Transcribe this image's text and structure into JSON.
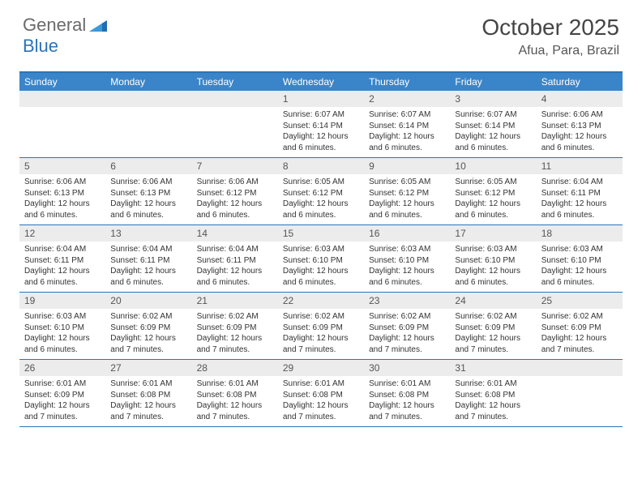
{
  "logo": {
    "general": "General",
    "blue": "Blue"
  },
  "title": {
    "month": "October 2025",
    "location": "Afua, Para, Brazil"
  },
  "colors": {
    "header_bar": "#3a85c9",
    "border": "#2a74b8",
    "daynum_bg": "#ececec",
    "text": "#333333",
    "logo_gray": "#6a6a6a",
    "logo_blue": "#2a74b8"
  },
  "weekdays": [
    "Sunday",
    "Monday",
    "Tuesday",
    "Wednesday",
    "Thursday",
    "Friday",
    "Saturday"
  ],
  "weeks": [
    [
      {
        "day": "",
        "sunrise": "",
        "sunset": "",
        "daylight": ""
      },
      {
        "day": "",
        "sunrise": "",
        "sunset": "",
        "daylight": ""
      },
      {
        "day": "",
        "sunrise": "",
        "sunset": "",
        "daylight": ""
      },
      {
        "day": "1",
        "sunrise": "Sunrise: 6:07 AM",
        "sunset": "Sunset: 6:14 PM",
        "daylight": "Daylight: 12 hours and 6 minutes."
      },
      {
        "day": "2",
        "sunrise": "Sunrise: 6:07 AM",
        "sunset": "Sunset: 6:14 PM",
        "daylight": "Daylight: 12 hours and 6 minutes."
      },
      {
        "day": "3",
        "sunrise": "Sunrise: 6:07 AM",
        "sunset": "Sunset: 6:14 PM",
        "daylight": "Daylight: 12 hours and 6 minutes."
      },
      {
        "day": "4",
        "sunrise": "Sunrise: 6:06 AM",
        "sunset": "Sunset: 6:13 PM",
        "daylight": "Daylight: 12 hours and 6 minutes."
      }
    ],
    [
      {
        "day": "5",
        "sunrise": "Sunrise: 6:06 AM",
        "sunset": "Sunset: 6:13 PM",
        "daylight": "Daylight: 12 hours and 6 minutes."
      },
      {
        "day": "6",
        "sunrise": "Sunrise: 6:06 AM",
        "sunset": "Sunset: 6:13 PM",
        "daylight": "Daylight: 12 hours and 6 minutes."
      },
      {
        "day": "7",
        "sunrise": "Sunrise: 6:06 AM",
        "sunset": "Sunset: 6:12 PM",
        "daylight": "Daylight: 12 hours and 6 minutes."
      },
      {
        "day": "8",
        "sunrise": "Sunrise: 6:05 AM",
        "sunset": "Sunset: 6:12 PM",
        "daylight": "Daylight: 12 hours and 6 minutes."
      },
      {
        "day": "9",
        "sunrise": "Sunrise: 6:05 AM",
        "sunset": "Sunset: 6:12 PM",
        "daylight": "Daylight: 12 hours and 6 minutes."
      },
      {
        "day": "10",
        "sunrise": "Sunrise: 6:05 AM",
        "sunset": "Sunset: 6:12 PM",
        "daylight": "Daylight: 12 hours and 6 minutes."
      },
      {
        "day": "11",
        "sunrise": "Sunrise: 6:04 AM",
        "sunset": "Sunset: 6:11 PM",
        "daylight": "Daylight: 12 hours and 6 minutes."
      }
    ],
    [
      {
        "day": "12",
        "sunrise": "Sunrise: 6:04 AM",
        "sunset": "Sunset: 6:11 PM",
        "daylight": "Daylight: 12 hours and 6 minutes."
      },
      {
        "day": "13",
        "sunrise": "Sunrise: 6:04 AM",
        "sunset": "Sunset: 6:11 PM",
        "daylight": "Daylight: 12 hours and 6 minutes."
      },
      {
        "day": "14",
        "sunrise": "Sunrise: 6:04 AM",
        "sunset": "Sunset: 6:11 PM",
        "daylight": "Daylight: 12 hours and 6 minutes."
      },
      {
        "day": "15",
        "sunrise": "Sunrise: 6:03 AM",
        "sunset": "Sunset: 6:10 PM",
        "daylight": "Daylight: 12 hours and 6 minutes."
      },
      {
        "day": "16",
        "sunrise": "Sunrise: 6:03 AM",
        "sunset": "Sunset: 6:10 PM",
        "daylight": "Daylight: 12 hours and 6 minutes."
      },
      {
        "day": "17",
        "sunrise": "Sunrise: 6:03 AM",
        "sunset": "Sunset: 6:10 PM",
        "daylight": "Daylight: 12 hours and 6 minutes."
      },
      {
        "day": "18",
        "sunrise": "Sunrise: 6:03 AM",
        "sunset": "Sunset: 6:10 PM",
        "daylight": "Daylight: 12 hours and 6 minutes."
      }
    ],
    [
      {
        "day": "19",
        "sunrise": "Sunrise: 6:03 AM",
        "sunset": "Sunset: 6:10 PM",
        "daylight": "Daylight: 12 hours and 6 minutes."
      },
      {
        "day": "20",
        "sunrise": "Sunrise: 6:02 AM",
        "sunset": "Sunset: 6:09 PM",
        "daylight": "Daylight: 12 hours and 7 minutes."
      },
      {
        "day": "21",
        "sunrise": "Sunrise: 6:02 AM",
        "sunset": "Sunset: 6:09 PM",
        "daylight": "Daylight: 12 hours and 7 minutes."
      },
      {
        "day": "22",
        "sunrise": "Sunrise: 6:02 AM",
        "sunset": "Sunset: 6:09 PM",
        "daylight": "Daylight: 12 hours and 7 minutes."
      },
      {
        "day": "23",
        "sunrise": "Sunrise: 6:02 AM",
        "sunset": "Sunset: 6:09 PM",
        "daylight": "Daylight: 12 hours and 7 minutes."
      },
      {
        "day": "24",
        "sunrise": "Sunrise: 6:02 AM",
        "sunset": "Sunset: 6:09 PM",
        "daylight": "Daylight: 12 hours and 7 minutes."
      },
      {
        "day": "25",
        "sunrise": "Sunrise: 6:02 AM",
        "sunset": "Sunset: 6:09 PM",
        "daylight": "Daylight: 12 hours and 7 minutes."
      }
    ],
    [
      {
        "day": "26",
        "sunrise": "Sunrise: 6:01 AM",
        "sunset": "Sunset: 6:09 PM",
        "daylight": "Daylight: 12 hours and 7 minutes."
      },
      {
        "day": "27",
        "sunrise": "Sunrise: 6:01 AM",
        "sunset": "Sunset: 6:08 PM",
        "daylight": "Daylight: 12 hours and 7 minutes."
      },
      {
        "day": "28",
        "sunrise": "Sunrise: 6:01 AM",
        "sunset": "Sunset: 6:08 PM",
        "daylight": "Daylight: 12 hours and 7 minutes."
      },
      {
        "day": "29",
        "sunrise": "Sunrise: 6:01 AM",
        "sunset": "Sunset: 6:08 PM",
        "daylight": "Daylight: 12 hours and 7 minutes."
      },
      {
        "day": "30",
        "sunrise": "Sunrise: 6:01 AM",
        "sunset": "Sunset: 6:08 PM",
        "daylight": "Daylight: 12 hours and 7 minutes."
      },
      {
        "day": "31",
        "sunrise": "Sunrise: 6:01 AM",
        "sunset": "Sunset: 6:08 PM",
        "daylight": "Daylight: 12 hours and 7 minutes."
      },
      {
        "day": "",
        "sunrise": "",
        "sunset": "",
        "daylight": ""
      }
    ]
  ]
}
